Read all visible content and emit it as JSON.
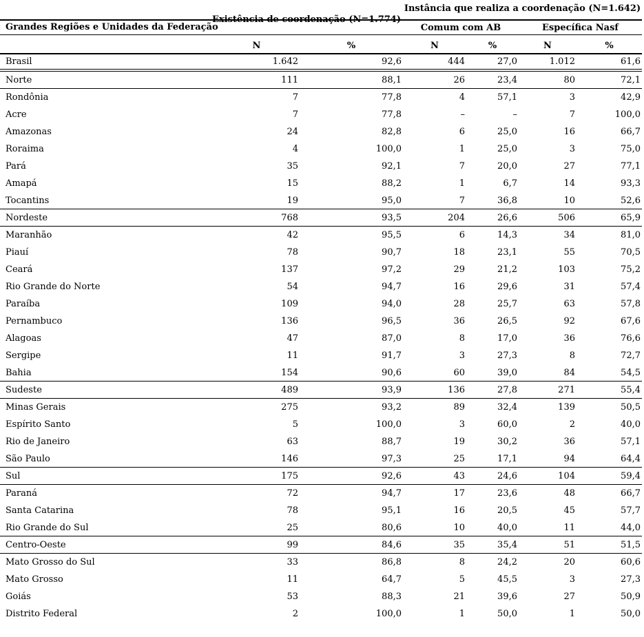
{
  "table": {
    "group_headers": {
      "existencia": "Existência de coordenação (N=1.774)",
      "instancia": "Instância que realiza a coordenação (N=1.642)",
      "comum_ab": "Comum com AB",
      "especifica_nasf": "Específica Nasf"
    },
    "row_header": "Grandes Regiões e Unidades da Federação",
    "measure_headers": [
      "N",
      "%",
      "N",
      "%",
      "N",
      "%"
    ],
    "rows": [
      {
        "label": "Brasil",
        "level": "country",
        "values": [
          "1.642",
          "92,6",
          "444",
          "27,0",
          "1.012",
          "61,6"
        ]
      },
      {
        "label": "Norte",
        "level": "region",
        "values": [
          "111",
          "88,1",
          "26",
          "23,4",
          "80",
          "72,1"
        ]
      },
      {
        "label": "Rondônia",
        "level": "state",
        "values": [
          "7",
          "77,8",
          "4",
          "57,1",
          "3",
          "42,9"
        ]
      },
      {
        "label": "Acre",
        "level": "state",
        "values": [
          "7",
          "77,8",
          "–",
          "–",
          "7",
          "100,0"
        ]
      },
      {
        "label": "Amazonas",
        "level": "state",
        "values": [
          "24",
          "82,8",
          "6",
          "25,0",
          "16",
          "66,7"
        ]
      },
      {
        "label": "Roraima",
        "level": "state",
        "values": [
          "4",
          "100,0",
          "1",
          "25,0",
          "3",
          "75,0"
        ]
      },
      {
        "label": "Pará",
        "level": "state",
        "values": [
          "35",
          "92,1",
          "7",
          "20,0",
          "27",
          "77,1"
        ]
      },
      {
        "label": "Amapá",
        "level": "state",
        "values": [
          "15",
          "88,2",
          "1",
          "6,7",
          "14",
          "93,3"
        ]
      },
      {
        "label": "Tocantins",
        "level": "state",
        "values": [
          "19",
          "95,0",
          "7",
          "36,8",
          "10",
          "52,6"
        ]
      },
      {
        "label": "Nordeste",
        "level": "region",
        "values": [
          "768",
          "93,5",
          "204",
          "26,6",
          "506",
          "65,9"
        ]
      },
      {
        "label": "Maranhão",
        "level": "state",
        "values": [
          "42",
          "95,5",
          "6",
          "14,3",
          "34",
          "81,0"
        ]
      },
      {
        "label": "Piauí",
        "level": "state",
        "values": [
          "78",
          "90,7",
          "18",
          "23,1",
          "55",
          "70,5"
        ]
      },
      {
        "label": "Ceará",
        "level": "state",
        "values": [
          "137",
          "97,2",
          "29",
          "21,2",
          "103",
          "75,2"
        ]
      },
      {
        "label": "Rio Grande do Norte",
        "level": "state",
        "values": [
          "54",
          "94,7",
          "16",
          "29,6",
          "31",
          "57,4"
        ]
      },
      {
        "label": "Paraíba",
        "level": "state",
        "values": [
          "109",
          "94,0",
          "28",
          "25,7",
          "63",
          "57,8"
        ]
      },
      {
        "label": "Pernambuco",
        "level": "state",
        "values": [
          "136",
          "96,5",
          "36",
          "26,5",
          "92",
          "67,6"
        ]
      },
      {
        "label": "Alagoas",
        "level": "state",
        "values": [
          "47",
          "87,0",
          "8",
          "17,0",
          "36",
          "76,6"
        ]
      },
      {
        "label": "Sergipe",
        "level": "state",
        "values": [
          "11",
          "91,7",
          "3",
          "27,3",
          "8",
          "72,7"
        ]
      },
      {
        "label": "Bahia",
        "level": "state",
        "values": [
          "154",
          "90,6",
          "60",
          "39,0",
          "84",
          "54,5"
        ]
      },
      {
        "label": "Sudeste",
        "level": "region",
        "values": [
          "489",
          "93,9",
          "136",
          "27,8",
          "271",
          "55,4"
        ]
      },
      {
        "label": "Minas Gerais",
        "level": "state",
        "values": [
          "275",
          "93,2",
          "89",
          "32,4",
          "139",
          "50,5"
        ]
      },
      {
        "label": "Espírito Santo",
        "level": "state",
        "values": [
          "5",
          "100,0",
          "3",
          "60,0",
          "2",
          "40,0"
        ]
      },
      {
        "label": "Rio de Janeiro",
        "level": "state",
        "values": [
          "63",
          "88,7",
          "19",
          "30,2",
          "36",
          "57,1"
        ]
      },
      {
        "label": "São Paulo",
        "level": "state",
        "values": [
          "146",
          "97,3",
          "25",
          "17,1",
          "94",
          "64,4"
        ]
      },
      {
        "label": "Sul",
        "level": "region",
        "values": [
          "175",
          "92,6",
          "43",
          "24,6",
          "104",
          "59,4"
        ]
      },
      {
        "label": "Paraná",
        "level": "state",
        "values": [
          "72",
          "94,7",
          "17",
          "23,6",
          "48",
          "66,7"
        ]
      },
      {
        "label": "Santa Catarina",
        "level": "state",
        "values": [
          "78",
          "95,1",
          "16",
          "20,5",
          "45",
          "57,7"
        ]
      },
      {
        "label": "Rio Grande do Sul",
        "level": "state",
        "values": [
          "25",
          "80,6",
          "10",
          "40,0",
          "11",
          "44,0"
        ]
      },
      {
        "label": "Centro-Oeste",
        "level": "region",
        "values": [
          "99",
          "84,6",
          "35",
          "35,4",
          "51",
          "51,5"
        ]
      },
      {
        "label": "Mato Grosso do Sul",
        "level": "state",
        "values": [
          "33",
          "86,8",
          "8",
          "24,2",
          "20",
          "60,6"
        ]
      },
      {
        "label": "Mato Grosso",
        "level": "state",
        "values": [
          "11",
          "64,7",
          "5",
          "45,5",
          "3",
          "27,3"
        ]
      },
      {
        "label": "Goiás",
        "level": "state",
        "values": [
          "53",
          "88,3",
          "21",
          "39,6",
          "27",
          "50,9"
        ]
      },
      {
        "label": "Distrito Federal",
        "level": "state",
        "values": [
          "2",
          "100,0",
          "1",
          "50,0",
          "1",
          "50,0"
        ]
      }
    ]
  }
}
